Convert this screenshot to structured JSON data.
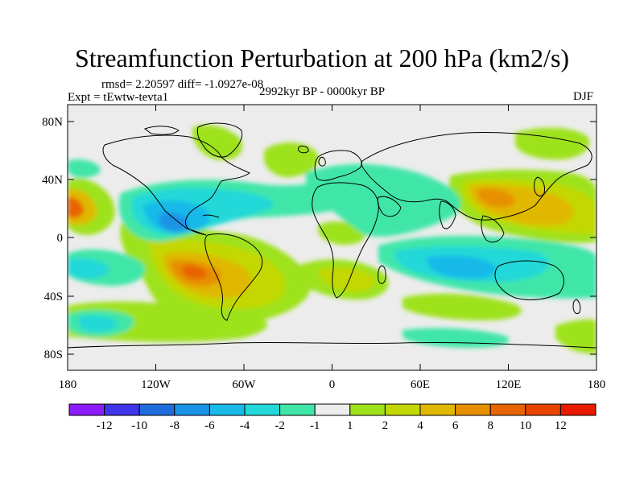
{
  "title": "Streamfunction Perturbation at 200 hPa (km2/s)",
  "stats_text": "rmsd= 2.20597  diff= -1.0927e-08",
  "experiment_text": "Expt = tEwtw-tevta1",
  "period_text": "2992kyr BP - 0000kyr BP",
  "season": "DJF",
  "map": {
    "projection": "cylindrical equidistant",
    "lat_ticks": [
      "80N",
      "40N",
      "0",
      "40S",
      "80S"
    ],
    "lon_ticks": [
      "180",
      "120W",
      "60W",
      "0",
      "60E",
      "120E",
      "180"
    ]
  },
  "colorbar": {
    "labels": [
      "-12",
      "-10",
      "-8",
      "-6",
      "-4",
      "-2",
      "-1",
      "1",
      "2",
      "4",
      "6",
      "8",
      "10",
      "12"
    ],
    "colors": [
      "#8c1cff",
      "#3f34e8",
      "#1f6cdc",
      "#1a93e6",
      "#19b9e8",
      "#23d8d8",
      "#3fe6a8",
      "#ececec",
      "#9ee21a",
      "#c2d800",
      "#e0b800",
      "#e69000",
      "#e86400",
      "#e84400",
      "#e81a00"
    ]
  }
}
